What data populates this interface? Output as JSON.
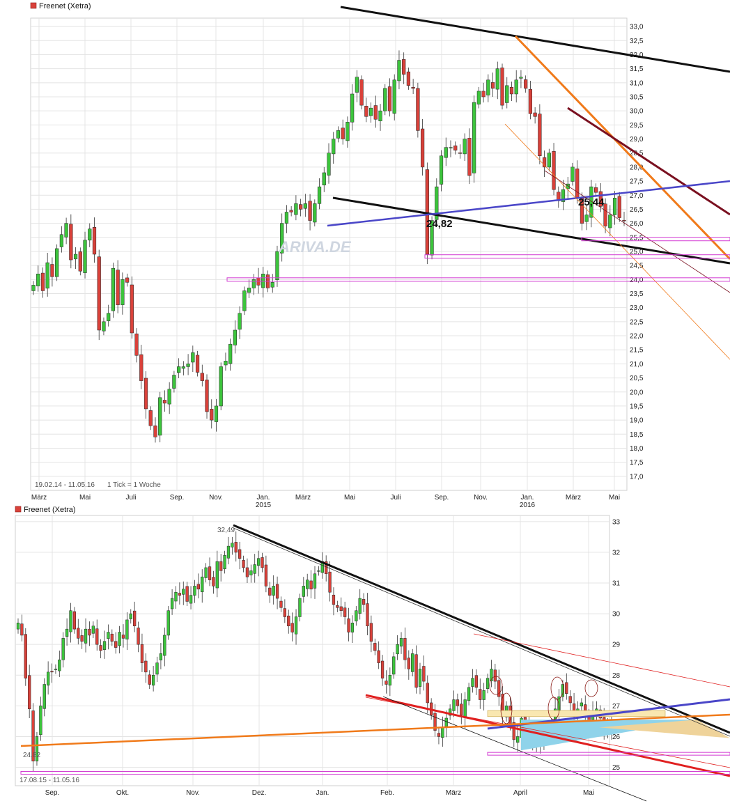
{
  "chart_data": [
    {
      "type": "candlestick",
      "title": "Freenet (Xetra)",
      "range_label": "19.02.14 - 11.05.16",
      "interval_label": "1 Tick = 1 Woche",
      "watermark": "ARIVA.DE",
      "ylim": [
        16.5,
        33.3
      ],
      "y_ticks": [
        "33,0",
        "32,5",
        "32,0",
        "31,5",
        "31,0",
        "30,5",
        "30,0",
        "29,5",
        "29,0",
        "28,5",
        "28,0",
        "27,5",
        "27,0",
        "26,5",
        "26,0",
        "25,5",
        "25,0",
        "24,5",
        "24,0",
        "23,5",
        "23,0",
        "22,5",
        "22,0",
        "21,5",
        "21,0",
        "20,5",
        "20,0",
        "19,5",
        "19,0",
        "18,5",
        "18,0",
        "17,5",
        "17,0"
      ],
      "x_labels": [
        "März",
        "Mai",
        "Juli",
        "Sep.",
        "Nov.",
        "Jan.",
        "März",
        "Mai",
        "Juli",
        "Sep.",
        "Nov.",
        "Jan.",
        "März",
        "Mai"
      ],
      "year_labels": [
        "2015",
        "2016"
      ],
      "annotations": [
        "24,82",
        "25,44"
      ],
      "series": [
        {
          "name": "Freenet (Xetra)",
          "close": [
            23.8,
            24.2,
            23.6,
            24.6,
            24.1,
            25.1,
            25.6,
            26.0,
            24.7,
            24.9,
            24.3,
            25.4,
            25.8,
            24.9,
            22.2,
            22.5,
            22.8,
            24.4,
            23.1,
            24.0,
            23.9,
            22.1,
            21.3,
            20.4,
            19.4,
            18.8,
            18.4,
            19.8,
            19.6,
            20.1,
            20.6,
            20.9,
            20.9,
            21.0,
            21.4,
            20.7,
            20.4,
            19.3,
            19.0,
            19.5,
            20.9,
            21.1,
            21.7,
            22.2,
            22.8,
            23.6,
            23.7,
            24.0,
            23.8,
            24.2,
            23.7,
            23.9,
            25.0,
            26.0,
            26.4,
            26.4,
            26.7,
            26.5,
            26.7,
            26.1,
            26.7,
            27.3,
            27.8,
            28.5,
            29.0,
            29.3,
            29.0,
            29.6,
            30.6,
            31.2,
            30.2,
            29.8,
            30.1,
            29.7,
            30.0,
            30.8,
            30.0,
            31.1,
            31.8,
            31.3,
            30.9,
            30.8,
            29.3,
            28.0,
            24.9,
            26.1,
            27.3,
            28.4,
            28.7,
            28.7,
            28.6,
            28.5,
            29.0,
            27.7,
            30.3,
            30.7,
            30.5,
            31.1,
            30.8,
            31.5,
            30.2,
            30.9,
            30.6,
            31.1,
            31.2,
            30.8,
            29.9,
            29.8,
            28.4,
            28.0,
            28.5,
            27.2,
            26.8,
            27.2,
            27.4,
            28.0,
            26.9,
            26.0,
            26.3,
            27.3,
            27.1,
            26.6,
            25.9,
            26.3,
            26.9,
            26.2,
            26.1
          ]
        }
      ]
    },
    {
      "type": "candlestick",
      "title": "Freenet (Xetra)",
      "range_label": "17.08.15 - 11.05.16",
      "ylim": [
        24.4,
        33.2
      ],
      "y_ticks": [
        "33",
        "32",
        "31",
        "30",
        "29",
        "28",
        "27",
        "26",
        "25"
      ],
      "x_labels": [
        "Sep.",
        "Okt.",
        "Nov.",
        "Dez.",
        "Jan.",
        "Feb.",
        "März",
        "April",
        "Mai"
      ],
      "annotations": [
        "32,49",
        "24,82"
      ],
      "series": [
        {
          "name": "Freenet (Xetra)",
          "close": [
            29.7,
            29.3,
            27.9,
            26.9,
            25.2,
            26.0,
            27.0,
            27.7,
            28.1,
            28.1,
            28.2,
            28.5,
            29.2,
            29.5,
            30.1,
            29.5,
            29.2,
            29.1,
            29.5,
            29.3,
            29.6,
            29.0,
            28.8,
            29.1,
            29.4,
            29.1,
            28.9,
            29.4,
            29.2,
            29.8,
            30.0,
            29.6,
            29.0,
            28.4,
            28.1,
            27.7,
            28.0,
            28.4,
            28.7,
            29.3,
            30.1,
            30.5,
            30.7,
            30.6,
            30.8,
            30.4,
            30.6,
            30.9,
            30.8,
            31.2,
            31.5,
            31.1,
            30.9,
            31.7,
            31.4,
            31.9,
            32.2,
            32.3,
            32.0,
            31.8,
            31.5,
            31.2,
            31.4,
            31.6,
            31.8,
            31.5,
            30.9,
            30.6,
            30.9,
            30.5,
            30.2,
            29.9,
            29.6,
            29.4,
            29.9,
            30.5,
            30.9,
            31.1,
            30.8,
            31.3,
            31.4,
            31.7,
            31.3,
            30.7,
            30.3,
            30.2,
            30.1,
            29.9,
            29.4,
            29.7,
            30.1,
            30.5,
            30.3,
            29.6,
            29.1,
            28.8,
            28.4,
            27.9,
            27.7,
            28.0,
            28.6,
            29.0,
            29.2,
            28.5,
            28.2,
            28.7,
            27.6,
            28.2,
            27.8,
            27.1,
            26.7,
            26.2,
            26.0,
            26.3,
            26.6,
            26.9,
            27.2,
            27.0,
            26.7,
            27.2,
            27.6,
            27.9,
            27.6,
            27.2,
            27.5,
            27.9,
            28.2,
            27.8,
            27.3,
            26.7,
            27.0,
            26.4,
            25.9,
            26.0,
            26.6,
            26.3,
            26.0,
            25.8,
            25.9,
            25.8,
            26.1,
            26.0,
            26.4,
            26.9,
            27.3,
            27.7,
            27.4,
            27.1,
            26.8,
            26.9,
            27.1,
            26.7,
            26.5,
            26.8,
            26.9,
            26.6,
            26.1,
            26.4,
            26.2
          ]
        }
      ]
    }
  ]
}
